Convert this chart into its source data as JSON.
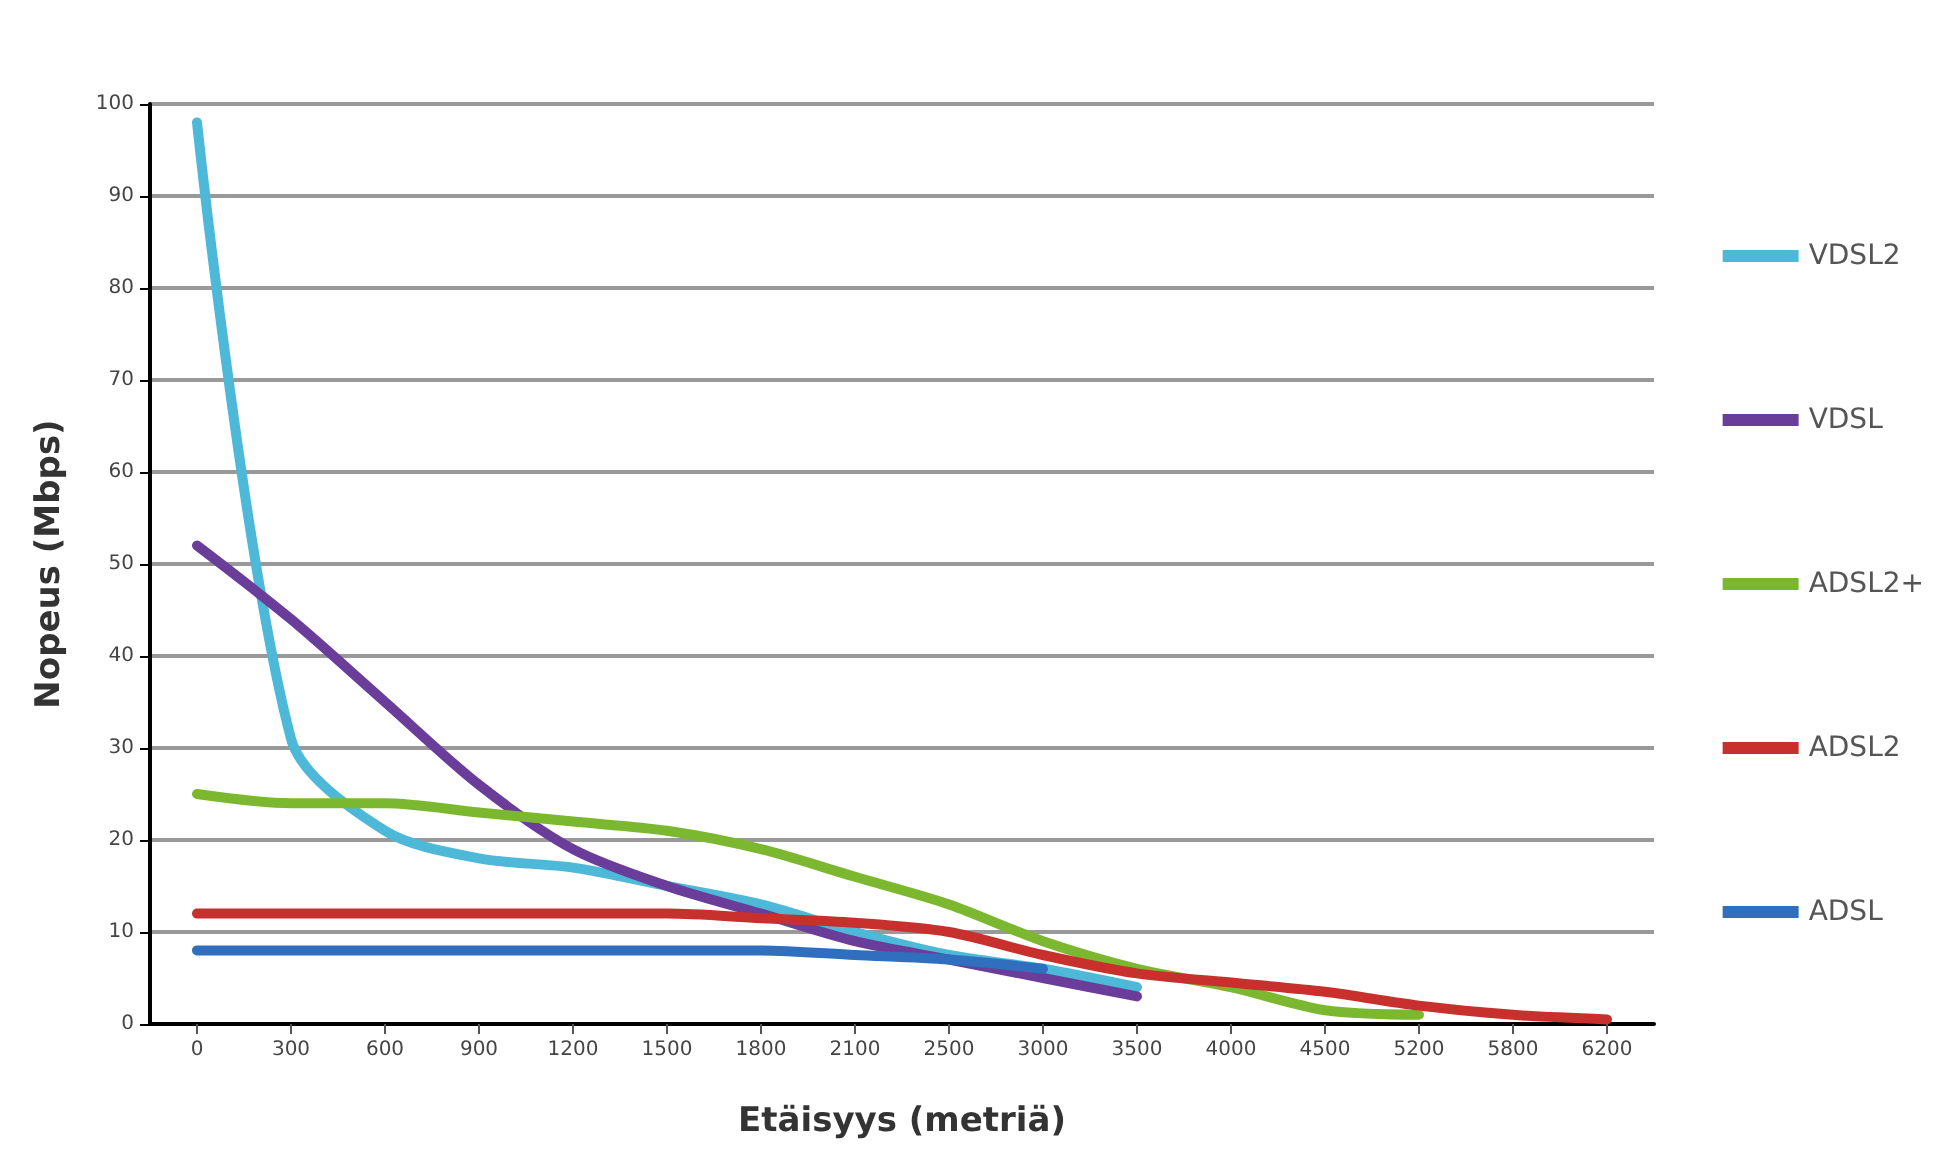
{
  "chart_data": {
    "type": "line",
    "xlabel": "Etäisyys (metriä)",
    "ylabel": "Nopeus (Mbps)",
    "categories": [
      "0",
      "300",
      "600",
      "900",
      "1200",
      "1500",
      "1800",
      "2100",
      "2500",
      "3000",
      "3500",
      "4000",
      "4500",
      "5200",
      "5800",
      "6200"
    ],
    "series": [
      {
        "name": "VDSL2",
        "color": "#4db8d8",
        "values": [
          98,
          31,
          21,
          18,
          17,
          15,
          13,
          10,
          7.5,
          6,
          4,
          null,
          null,
          null,
          null,
          null
        ]
      },
      {
        "name": "VDSL",
        "color": "#6a3d9a",
        "values": [
          52,
          44,
          35,
          26,
          19,
          15,
          12,
          9,
          7,
          5,
          3,
          null,
          null,
          null,
          null,
          null
        ]
      },
      {
        "name": "ADSL2+",
        "color": "#7cb82f",
        "values": [
          25,
          24,
          24,
          23,
          22,
          21,
          19,
          16,
          13,
          9,
          6,
          4,
          1.5,
          1,
          null,
          null
        ]
      },
      {
        "name": "ADSL2",
        "color": "#c8302e",
        "values": [
          12,
          12,
          12,
          12,
          12,
          12,
          11.5,
          11,
          10,
          7.5,
          5.5,
          4.5,
          3.5,
          2,
          1,
          0.5
        ]
      },
      {
        "name": "ADSL",
        "color": "#2f6fbd",
        "values": [
          8,
          8,
          8,
          8,
          8,
          8,
          8,
          7.5,
          7,
          6,
          null,
          null,
          null,
          null,
          null,
          null
        ]
      }
    ],
    "ylim": [
      0,
      100
    ],
    "yticks": [
      0,
      10,
      20,
      30,
      40,
      50,
      60,
      70,
      80,
      90,
      100
    ],
    "grid": "y",
    "legend": "right",
    "marker": "none",
    "line_style": "solid"
  }
}
